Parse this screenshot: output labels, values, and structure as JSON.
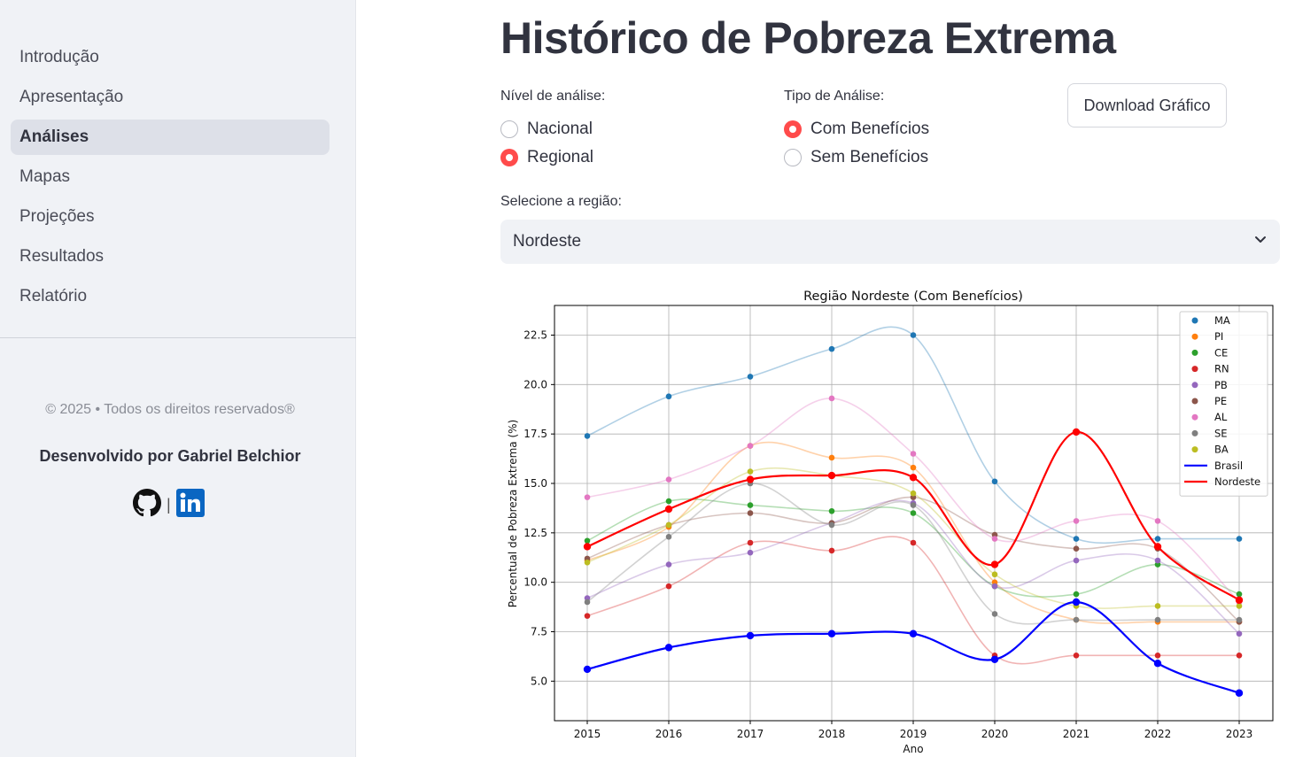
{
  "sidebar": {
    "nav": [
      "Introdução",
      "Apresentação",
      "Análises",
      "Mapas",
      "Projeções",
      "Resultados",
      "Relatório"
    ],
    "active_index": 2,
    "copyright": "© 2025 • Todos os direitos reservados®",
    "developer": "Desenvolvido por Gabriel Belchior",
    "social_icons": [
      "github-icon",
      "linkedin-icon"
    ]
  },
  "main": {
    "title": "Histórico de Pobreza Extrema",
    "level_label": "Nível de análise:",
    "level_options": [
      "Nacional",
      "Regional"
    ],
    "level_selected": "Regional",
    "type_label": "Tipo de Análise:",
    "type_options": [
      "Com Benefícios",
      "Sem Benefícios"
    ],
    "type_selected": "Com Benefícios",
    "download_label": "Download Gráfico",
    "region_label": "Selecione a região:",
    "region_value": "Nordeste"
  },
  "colors": {
    "accent": "#ff4b4b",
    "brasil": "#0000ff",
    "nordeste": "#ff0000"
  },
  "chart_data": {
    "type": "line",
    "title": "Região Nordeste (Com Benefícios)",
    "xlabel": "Ano",
    "ylabel": "Percentual de Pobreza Extrema (%)",
    "x": [
      2015,
      2016,
      2017,
      2018,
      2019,
      2020,
      2021,
      2022,
      2023
    ],
    "ylim": [
      3.0,
      24.0
    ],
    "yticks": [
      "5.0",
      "7.5",
      "10.0",
      "12.5",
      "15.0",
      "17.5",
      "20.0",
      "22.5"
    ],
    "grid": true,
    "legend_position": "top-right",
    "series": [
      {
        "name": "MA",
        "color": "#1f77b4",
        "values": [
          17.4,
          19.4,
          20.4,
          21.8,
          22.5,
          15.1,
          12.2,
          12.2,
          12.2
        ]
      },
      {
        "name": "PI",
        "color": "#ff7f0e",
        "values": [
          11.1,
          12.8,
          16.9,
          16.3,
          15.8,
          10.0,
          8.1,
          8.0,
          8.0
        ]
      },
      {
        "name": "CE",
        "color": "#2ca02c",
        "values": [
          12.1,
          14.1,
          13.9,
          13.6,
          13.5,
          9.8,
          9.4,
          10.9,
          9.4
        ]
      },
      {
        "name": "RN",
        "color": "#d62728",
        "values": [
          8.3,
          9.8,
          12.0,
          11.6,
          12.0,
          6.3,
          6.3,
          6.3,
          6.3
        ]
      },
      {
        "name": "PB",
        "color": "#9467bd",
        "values": [
          9.2,
          10.9,
          11.5,
          13.0,
          14.0,
          9.8,
          11.1,
          11.1,
          7.4
        ]
      },
      {
        "name": "PE",
        "color": "#8c564b",
        "values": [
          11.2,
          12.9,
          13.5,
          13.0,
          14.3,
          12.4,
          11.7,
          11.7,
          8.0
        ]
      },
      {
        "name": "AL",
        "color": "#e377c2",
        "values": [
          14.3,
          15.2,
          16.9,
          19.3,
          16.5,
          12.2,
          13.1,
          13.1,
          9.0
        ]
      },
      {
        "name": "SE",
        "color": "#7f7f7f",
        "values": [
          9.0,
          12.3,
          15.0,
          12.9,
          13.9,
          8.4,
          8.1,
          8.1,
          8.1
        ]
      },
      {
        "name": "BA",
        "color": "#bcbd22",
        "values": [
          11.0,
          12.9,
          15.6,
          15.4,
          14.5,
          10.4,
          8.8,
          8.8,
          8.8
        ]
      },
      {
        "name": "Brasil",
        "color": "#0000ff",
        "values": [
          5.6,
          6.7,
          7.3,
          7.4,
          7.4,
          6.1,
          9.0,
          5.9,
          4.4
        ]
      },
      {
        "name": "Nordeste",
        "color": "#ff0000",
        "values": [
          11.8,
          13.7,
          15.2,
          15.4,
          15.3,
          10.9,
          17.6,
          11.8,
          9.1
        ]
      }
    ]
  }
}
